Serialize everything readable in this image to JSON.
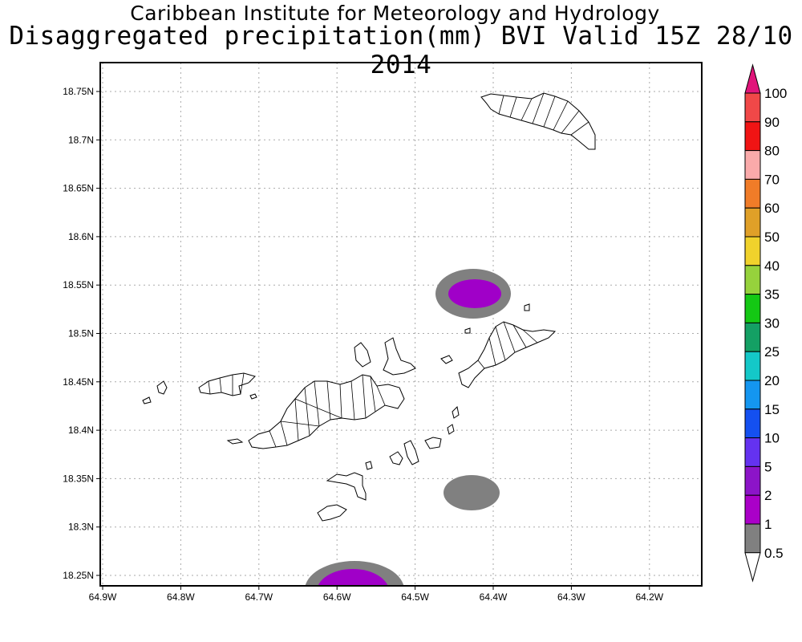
{
  "header": {
    "title": "Caribbean Institute for Meteorology and Hydrology",
    "subtitle": "Disaggregated precipitation(mm) BVI Valid 15Z 28/10 2014"
  },
  "map": {
    "lon_ticks": [
      "64.9W",
      "64.8W",
      "64.7W",
      "64.6W",
      "64.5W",
      "64.4W",
      "64.3W",
      "64.2W"
    ],
    "lat_ticks": [
      "18.75N",
      "18.7N",
      "18.65N",
      "18.6N",
      "18.55N",
      "18.5N",
      "18.45N",
      "18.4N",
      "18.35N",
      "18.3N",
      "18.25N"
    ],
    "gridlines": "dotted"
  },
  "colorbar": {
    "levels": [
      "100",
      "90",
      "80",
      "70",
      "60",
      "50",
      "40",
      "35",
      "30",
      "25",
      "20",
      "15",
      "10",
      "5",
      "2",
      "1",
      "0.5"
    ],
    "colors": [
      "#e0157a",
      "#f04848",
      "#f01414",
      "#faaaaa",
      "#f07c28",
      "#e0a028",
      "#f0d22c",
      "#96d23c",
      "#14c814",
      "#14a064",
      "#14c8c8",
      "#1496f0",
      "#1450f0",
      "#6432f0",
      "#8c14c8",
      "#aa00c8",
      "#808080",
      "#ffffff"
    ]
  },
  "precip": {
    "gray_color": "#808080",
    "purple_color": "#a000c8"
  }
}
